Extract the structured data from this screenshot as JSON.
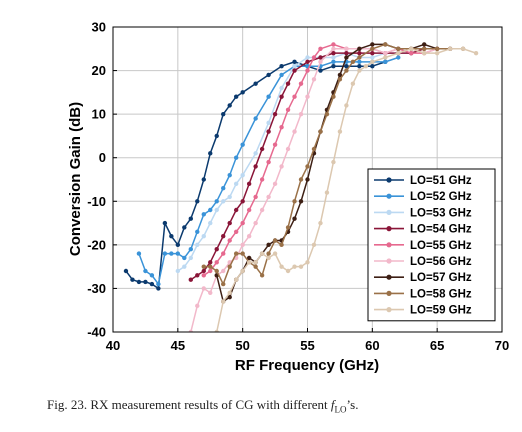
{
  "chart_data": {
    "type": "line",
    "xlabel": "RF Frequency (GHz)",
    "ylabel": "Conversion Gain (dB)",
    "xlim": [
      40,
      70
    ],
    "ylim": [
      -40,
      30
    ],
    "x_ticks": [
      "40",
      "45",
      "50",
      "55",
      "60",
      "65",
      "70"
    ],
    "y_ticks": [
      "-40",
      "-30",
      "-20",
      "-10",
      "0",
      "10",
      "20",
      "30"
    ],
    "grid": true,
    "legend_position": "bottom-right",
    "series": [
      {
        "name": "LO=51 GHz",
        "color": "#0b3a6e",
        "marker": "circle",
        "x": [
          41,
          41.5,
          42,
          42.5,
          43,
          43.5,
          44,
          44.5,
          45,
          45.5,
          46,
          46.5,
          47,
          47.5,
          48,
          48.5,
          49,
          49.5,
          50,
          51,
          52,
          53,
          54,
          55,
          56,
          57,
          58,
          59,
          60,
          61
        ],
        "y": [
          -26,
          -28,
          -28.5,
          -28.5,
          -29,
          -30,
          -15,
          -18,
          -20,
          -16,
          -14,
          -10,
          -5,
          1,
          5,
          10,
          12,
          14,
          15,
          17,
          19,
          21,
          22,
          21,
          20,
          21,
          21,
          21,
          21,
          22
        ]
      },
      {
        "name": "LO=52 GHz",
        "color": "#3a93d8",
        "marker": "circle",
        "x": [
          42,
          42.5,
          43,
          43.5,
          44,
          44.5,
          45,
          45.5,
          46,
          46.5,
          47,
          47.5,
          48,
          48.5,
          49,
          49.5,
          50,
          51,
          52,
          53,
          54,
          55,
          56,
          57,
          58,
          59,
          60,
          61,
          62
        ],
        "y": [
          -22,
          -26,
          -27,
          -29,
          -22,
          -22,
          -22,
          -23,
          -21,
          -17,
          -13,
          -12,
          -10,
          -7,
          -4,
          0,
          3,
          9,
          14,
          19,
          21,
          21,
          21,
          22,
          22,
          22,
          22,
          22,
          23
        ]
      },
      {
        "name": "LO=53 GHz",
        "color": "#bcd9f2",
        "marker": "circle",
        "x": [
          45,
          45.5,
          46,
          46.5,
          47,
          47.5,
          48,
          48.5,
          49,
          49.5,
          50,
          51,
          52,
          53,
          54,
          55,
          56,
          57,
          58,
          59,
          60,
          61,
          62,
          63
        ],
        "y": [
          -26,
          -25,
          -23,
          -20,
          -18,
          -15,
          -12,
          -10,
          -9,
          -6,
          -4,
          1,
          8,
          16,
          21,
          23,
          23,
          23,
          24,
          23,
          23,
          24,
          24,
          24
        ]
      },
      {
        "name": "LO=54 GHz",
        "color": "#8a1538",
        "marker": "circle",
        "x": [
          46,
          46.5,
          47,
          47.5,
          48,
          48.5,
          49,
          49.5,
          50,
          50.5,
          51,
          51.5,
          52,
          52.5,
          53,
          53.5,
          54,
          55,
          56,
          57,
          58,
          59,
          60,
          61,
          62,
          63,
          64
        ],
        "y": [
          -28,
          -27,
          -26,
          -24,
          -21,
          -18,
          -15,
          -12,
          -10,
          -6,
          -2,
          2,
          6,
          10,
          14,
          17,
          20,
          22,
          23,
          24,
          24,
          24,
          24,
          24,
          24,
          24,
          25
        ]
      },
      {
        "name": "LO=55 GHz",
        "color": "#e6698f",
        "marker": "circle",
        "x": [
          47,
          47.5,
          48,
          48.5,
          49,
          49.5,
          50,
          50.5,
          51,
          51.5,
          52,
          52.5,
          53,
          53.5,
          54,
          54.5,
          55,
          55.5,
          56,
          57,
          58,
          59,
          60,
          61,
          62,
          63,
          64,
          65
        ],
        "y": [
          -27,
          -26,
          -24,
          -22,
          -19,
          -17,
          -15,
          -12,
          -9,
          -5,
          -1,
          3,
          7,
          11,
          14,
          17,
          20,
          23,
          25,
          26,
          25,
          25,
          25,
          24,
          25,
          24,
          24,
          25
        ]
      },
      {
        "name": "LO=56 GHz",
        "color": "#f2b8ca",
        "marker": "circle",
        "x": [
          46,
          46.5,
          47,
          47.5,
          48,
          48.5,
          49,
          49.5,
          50,
          50.5,
          51,
          51.5,
          52,
          52.5,
          53,
          53.5,
          54,
          54.5,
          55,
          55.5,
          56,
          57,
          58,
          59,
          60,
          61,
          62,
          63,
          64,
          65,
          66
        ],
        "y": [
          -40,
          -34,
          -30,
          -31,
          -27,
          -26,
          -24,
          -23,
          -20,
          -18,
          -15,
          -12,
          -9,
          -6,
          -2,
          2,
          6,
          10,
          14,
          18,
          22,
          25,
          25,
          25,
          25,
          24,
          25,
          25,
          24,
          25,
          25
        ]
      },
      {
        "name": "LO=57 GHz",
        "color": "#3d1f14",
        "marker": "circle",
        "x": [
          48,
          48.5,
          49,
          49.5,
          50,
          50.5,
          51,
          51.5,
          52,
          52.5,
          53,
          53.5,
          54,
          54.5,
          55,
          55.5,
          56,
          56.5,
          57,
          57.5,
          58,
          59,
          60,
          61,
          62,
          63,
          64,
          65,
          66
        ],
        "y": [
          -27,
          -33,
          -32,
          -28,
          -26,
          -23,
          -24,
          -22,
          -20,
          -19,
          -19,
          -17,
          -14,
          -10,
          -5,
          1,
          6,
          11,
          15,
          19,
          23,
          25,
          26,
          26,
          25,
          25,
          26,
          25,
          25
        ]
      },
      {
        "name": "LO=58 GHz",
        "color": "#9a7148",
        "marker": "circle",
        "x": [
          47,
          47.5,
          48,
          48.5,
          49,
          49.5,
          50,
          50.5,
          51,
          51.5,
          52,
          52.5,
          53,
          53.5,
          54,
          54.5,
          55,
          55.5,
          56,
          56.5,
          57,
          57.5,
          58,
          58.5,
          59,
          60,
          61,
          62,
          63,
          64,
          65,
          66,
          67
        ],
        "y": [
          -25,
          -25,
          -26,
          -29,
          -25,
          -22,
          -22,
          -24,
          -25,
          -27,
          -22,
          -19,
          -20,
          -16,
          -10,
          -5,
          -2,
          2,
          6,
          10,
          14,
          18,
          20,
          22,
          23,
          25,
          26,
          25,
          25,
          25,
          25,
          25,
          25
        ]
      },
      {
        "name": "LO=59 GHz",
        "color": "#dcc8b0",
        "marker": "circle",
        "x": [
          48,
          48.5,
          49,
          49.5,
          50,
          50.5,
          51,
          51.5,
          52,
          52.5,
          53,
          53.5,
          54,
          54.5,
          55,
          55.5,
          56,
          56.5,
          57,
          57.5,
          58,
          58.5,
          59,
          59.5,
          60,
          61,
          62,
          63,
          64,
          65,
          66,
          67,
          68
        ],
        "y": [
          -40,
          -33,
          -31,
          -28,
          -26,
          -24,
          -24,
          -22,
          -23,
          -22,
          -25,
          -26,
          -25,
          -25,
          -24,
          -20,
          -15,
          -8,
          -1,
          6,
          12,
          17,
          20,
          21,
          22,
          23,
          24,
          25,
          24,
          24,
          25,
          25,
          24
        ]
      }
    ]
  },
  "caption": {
    "prefix": "Fig. 23.  RX measurement results of CG with different ",
    "var": "f",
    "sub": "LO",
    "suffix": "’s."
  }
}
